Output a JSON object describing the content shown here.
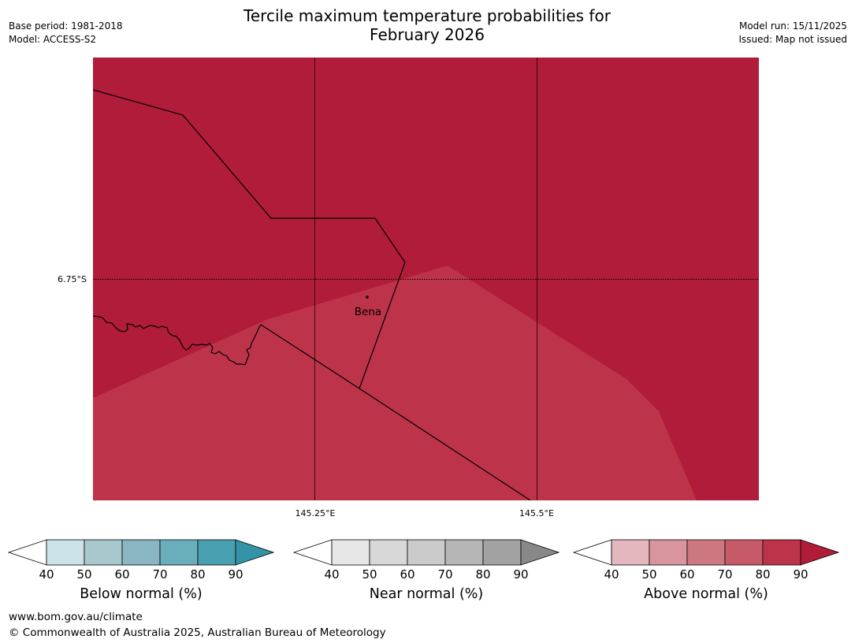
{
  "header": {
    "title_line1": "Tercile maximum temperature probabilities for",
    "title_line2": "February 2026",
    "base_period": "Base period: 1981-2018",
    "model": "Model: ACCESS-S2",
    "model_run": "Model run: 15/11/2025",
    "issued": "Issued: Map not issued"
  },
  "map": {
    "place_label": "Bena",
    "lat_label": "6.75°S",
    "lon_labels": [
      "145.25°E",
      "145.5°E"
    ],
    "colors": {
      "above_90": "#b01c39",
      "above_80": "#bd344a"
    }
  },
  "legends": [
    {
      "label": "Below normal (%)",
      "ticks": [
        "40",
        "50",
        "60",
        "70",
        "80",
        "90"
      ],
      "colors": [
        "#ffffff",
        "#cbe3e8",
        "#a9c8ce",
        "#89b6c2",
        "#6baebb",
        "#49a0b0",
        "#3493a6"
      ]
    },
    {
      "label": "Near normal (%)",
      "ticks": [
        "40",
        "50",
        "60",
        "70",
        "80",
        "90"
      ],
      "colors": [
        "#ffffff",
        "#e7e7e7",
        "#d8d8d8",
        "#cbcbcb",
        "#b6b6b6",
        "#a2a2a2",
        "#888888"
      ]
    },
    {
      "label": "Above normal (%)",
      "ticks": [
        "40",
        "50",
        "60",
        "70",
        "80",
        "90"
      ],
      "colors": [
        "#ffffff",
        "#e3b7bd",
        "#d8959d",
        "#cd7780",
        "#c65a69",
        "#bd344a",
        "#b01c39"
      ]
    }
  ],
  "footer": {
    "url": "www.bom.gov.au/climate",
    "copyright": "© Commonwealth of Australia 2025, Australian Bureau of Meteorology"
  }
}
